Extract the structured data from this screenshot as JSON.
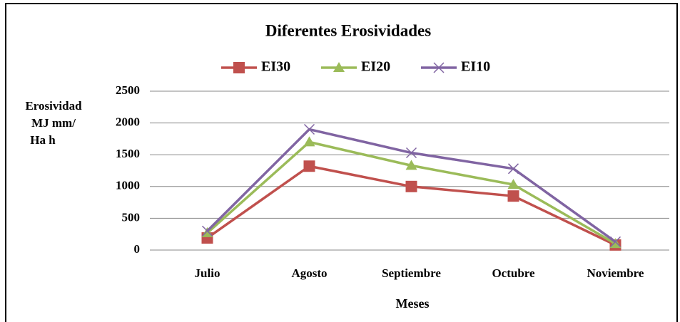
{
  "chart_data": {
    "type": "line",
    "title": "Diferentes Erosividades",
    "xlabel": "Meses",
    "ylabel": [
      "Erosividad",
      "MJ mm/",
      "Ha h"
    ],
    "categories": [
      "Julio",
      "Agosto",
      "Septiembre",
      "Octubre",
      "Noviembre"
    ],
    "series": [
      {
        "name": "EI30",
        "color": "#c0504d",
        "marker": "square",
        "values": [
          190,
          1320,
          1000,
          850,
          80
        ]
      },
      {
        "name": "EI20",
        "color": "#9bbb59",
        "marker": "triangle",
        "values": [
          270,
          1700,
          1330,
          1030,
          100
        ]
      },
      {
        "name": "EI10",
        "color": "#8064a2",
        "marker": "x",
        "values": [
          300,
          1900,
          1530,
          1280,
          130
        ]
      }
    ],
    "ylim": [
      0,
      2500
    ],
    "yticks": [
      0,
      500,
      1000,
      1500,
      2000,
      2500
    ],
    "grid": true,
    "legend": "top"
  }
}
